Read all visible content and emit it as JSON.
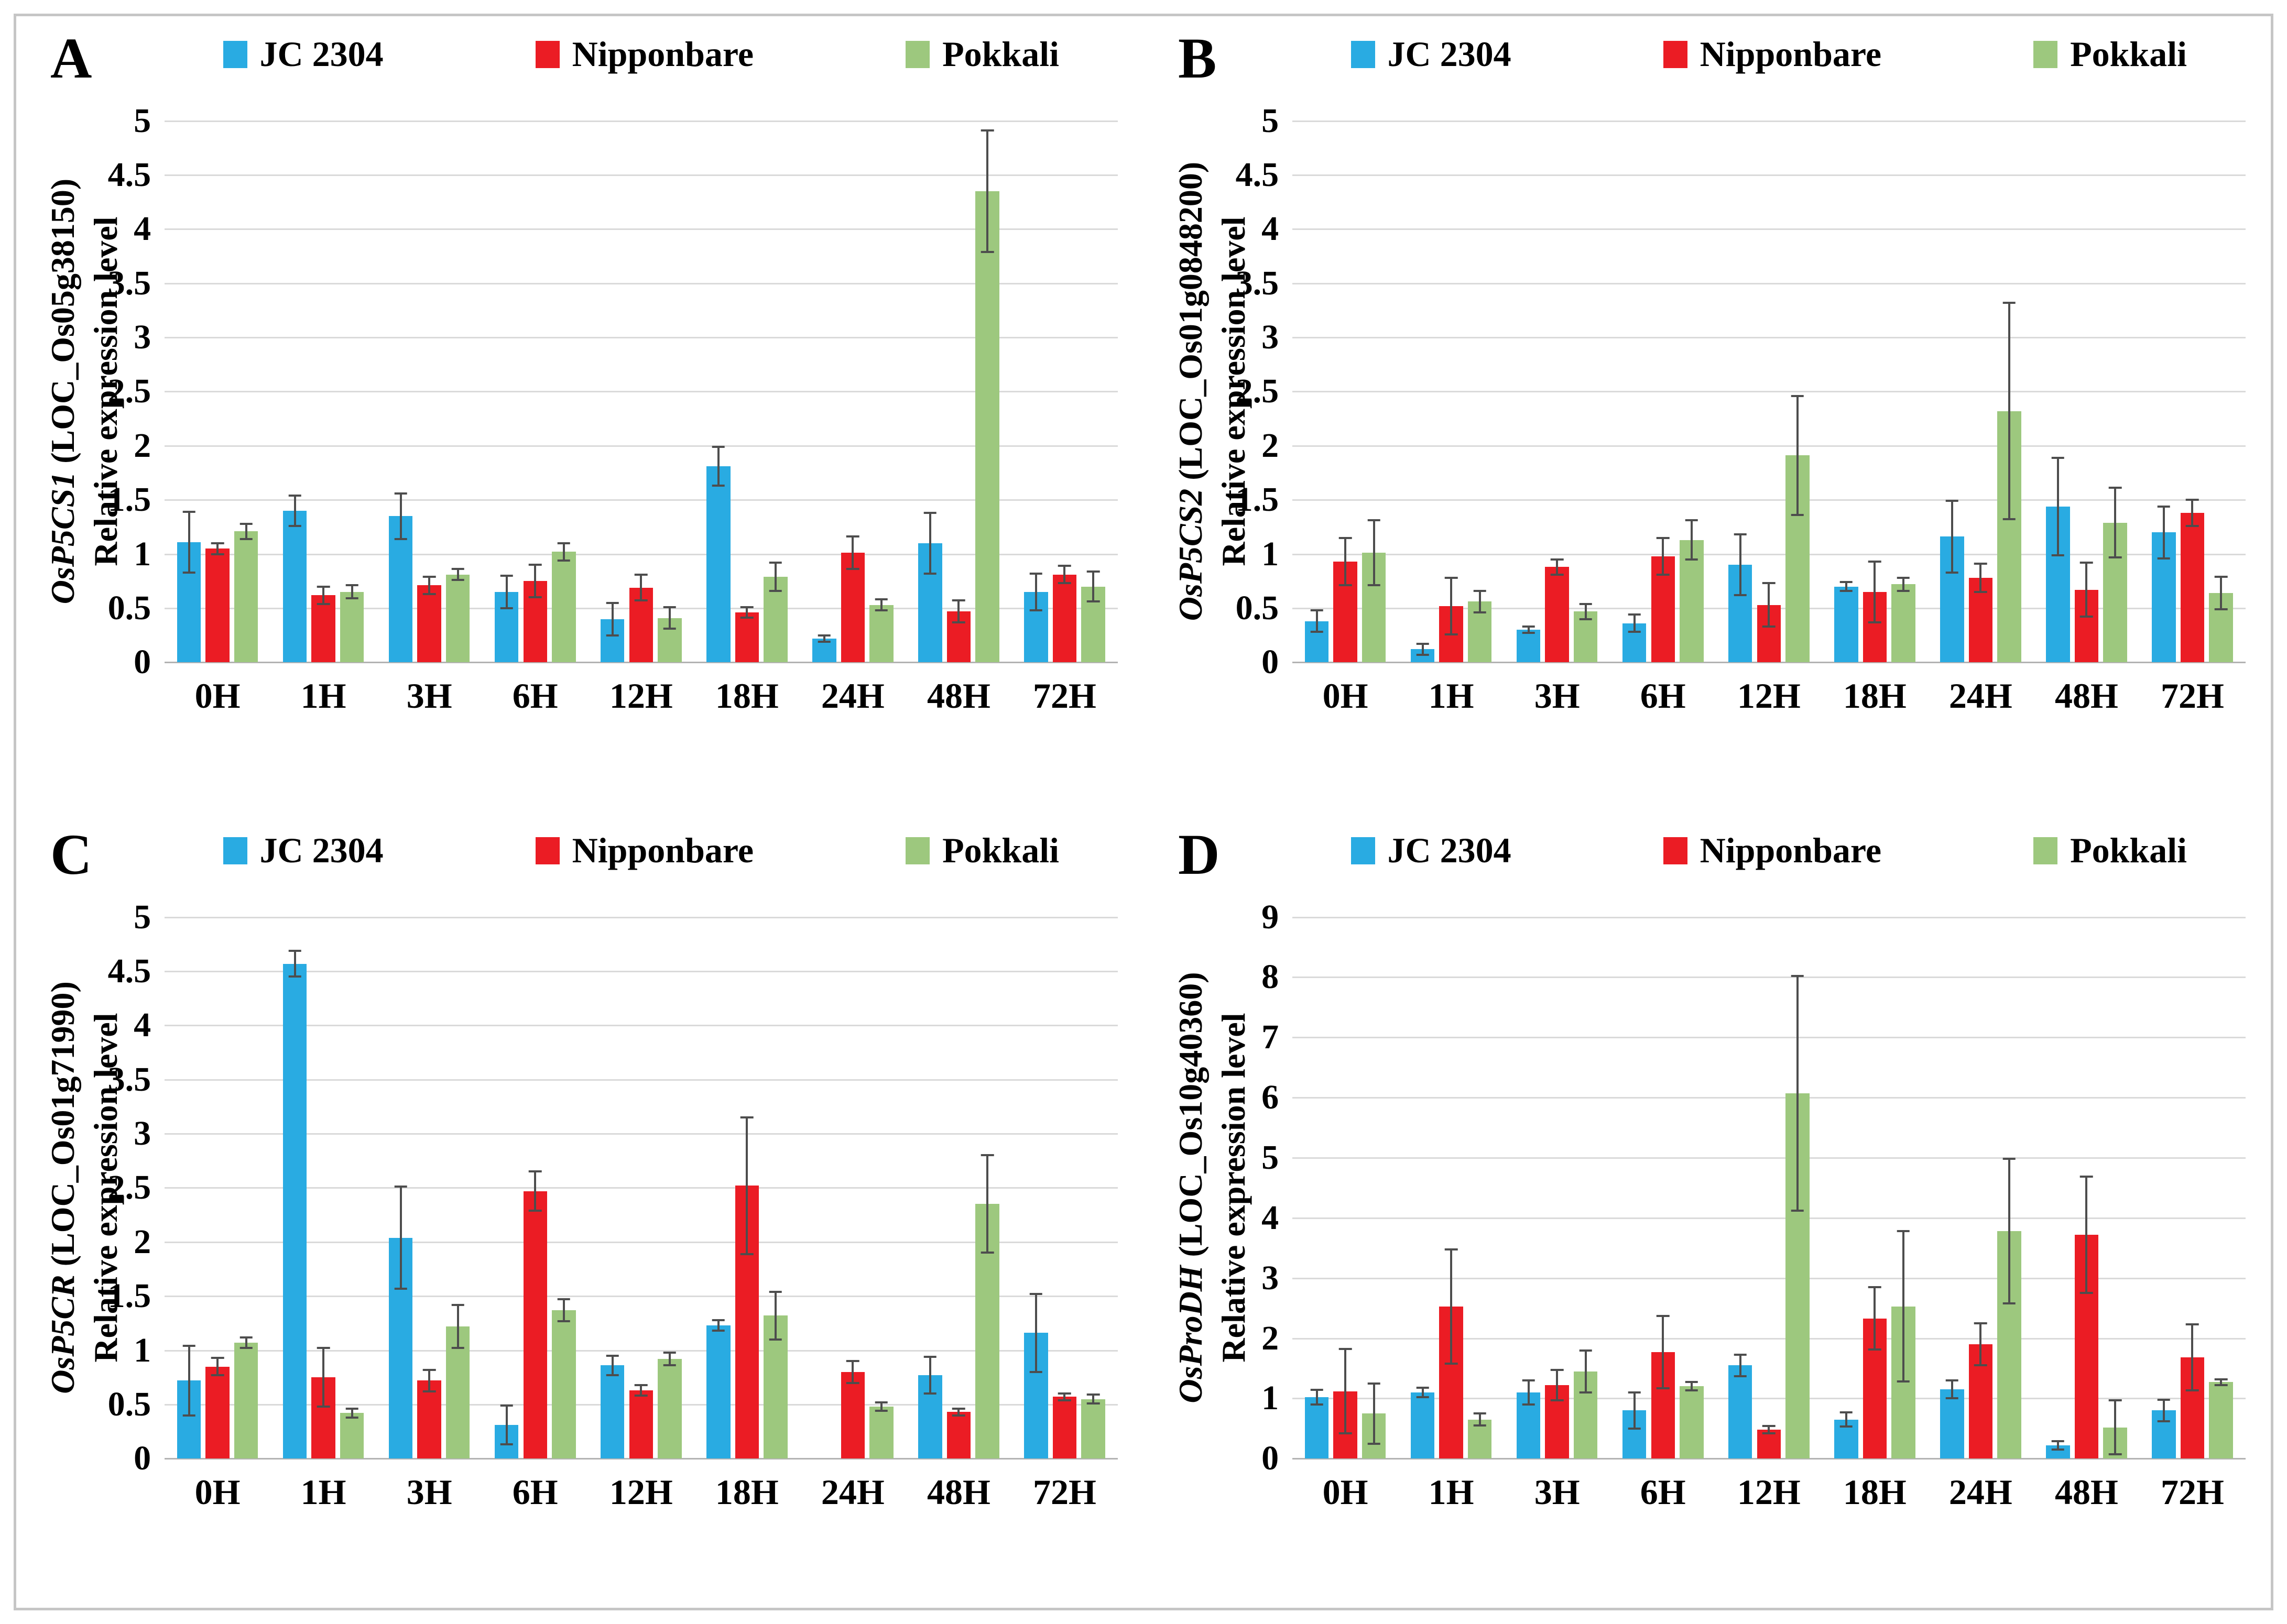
{
  "figure": {
    "background": "#ffffff",
    "border_color": "#c6c6c6",
    "gridline_color": "#dadada",
    "axis_line_color": "#b3b3b3",
    "error_bar_color": "#4d4d4d"
  },
  "legend": {
    "position": "top",
    "items": [
      {
        "label": "JC 2304",
        "color": "#29ABE2"
      },
      {
        "label": "Nipponbare",
        "color": "#EB1C24"
      },
      {
        "label": "Pokkali",
        "color": "#9DC87E"
      }
    ]
  },
  "chart_data": [
    {
      "type": "bar",
      "panel_label": "A",
      "gene": "OsP5CS1",
      "locus": "(LOC_Os05g38150)",
      "ylabel": "Relative expression level",
      "grid": true,
      "legend_position": "top",
      "categories": [
        "0H",
        "1H",
        "3H",
        "6H",
        "12H",
        "18H",
        "24H",
        "48H",
        "72H"
      ],
      "ylim": [
        0,
        5
      ],
      "yticks": [
        0,
        0.5,
        1,
        1.5,
        2,
        2.5,
        3,
        3.5,
        4,
        4.5,
        5
      ],
      "series": [
        {
          "name": "JC 2304",
          "color": "#29ABE2",
          "values": [
            1.11,
            1.4,
            1.35,
            0.65,
            0.4,
            1.81,
            0.22,
            1.1,
            0.65
          ],
          "errors": [
            0.28,
            0.14,
            0.21,
            0.15,
            0.15,
            0.18,
            0.03,
            0.28,
            0.17
          ]
        },
        {
          "name": "Nipponbare",
          "color": "#EB1C24",
          "values": [
            1.05,
            0.62,
            0.71,
            0.75,
            0.69,
            0.46,
            1.01,
            0.47,
            0.81
          ],
          "errors": [
            0.05,
            0.08,
            0.08,
            0.15,
            0.12,
            0.05,
            0.15,
            0.1,
            0.08
          ]
        },
        {
          "name": "Pokkali",
          "color": "#9DC87E",
          "values": [
            1.21,
            0.65,
            0.81,
            1.02,
            0.41,
            0.79,
            0.53,
            4.35,
            0.7
          ],
          "errors": [
            0.07,
            0.06,
            0.05,
            0.08,
            0.1,
            0.13,
            0.05,
            0.56,
            0.14
          ]
        }
      ]
    },
    {
      "type": "bar",
      "panel_label": "B",
      "gene": "OsP5CS2",
      "locus": "(LOC_Os01g0848200)",
      "ylabel": "Relative expression level",
      "grid": true,
      "legend_position": "top",
      "categories": [
        "0H",
        "1H",
        "3H",
        "6H",
        "12H",
        "18H",
        "24H",
        "48H",
        "72H"
      ],
      "ylim": [
        0,
        5
      ],
      "yticks": [
        0,
        0.5,
        1,
        1.5,
        2,
        2.5,
        3,
        3.5,
        4,
        4.5,
        5
      ],
      "series": [
        {
          "name": "JC 2304",
          "color": "#29ABE2",
          "values": [
            0.38,
            0.12,
            0.3,
            0.36,
            0.9,
            0.7,
            1.16,
            1.44,
            1.2
          ],
          "errors": [
            0.1,
            0.05,
            0.03,
            0.08,
            0.28,
            0.04,
            0.33,
            0.45,
            0.24
          ]
        },
        {
          "name": "Nipponbare",
          "color": "#EB1C24",
          "values": [
            0.93,
            0.52,
            0.88,
            0.98,
            0.53,
            0.65,
            0.78,
            0.67,
            1.38
          ],
          "errors": [
            0.22,
            0.26,
            0.07,
            0.17,
            0.2,
            0.28,
            0.13,
            0.25,
            0.12
          ]
        },
        {
          "name": "Pokkali",
          "color": "#9DC87E",
          "values": [
            1.01,
            0.56,
            0.47,
            1.13,
            1.91,
            0.72,
            2.32,
            1.29,
            0.64
          ],
          "errors": [
            0.3,
            0.1,
            0.07,
            0.18,
            0.55,
            0.06,
            1.0,
            0.32,
            0.15
          ]
        }
      ]
    },
    {
      "type": "bar",
      "panel_label": "C",
      "gene": "OsP5CR",
      "locus": "(LOC_Os01g71990)",
      "ylabel": "Relative expression level",
      "grid": true,
      "legend_position": "top",
      "categories": [
        "0H",
        "1H",
        "3H",
        "6H",
        "12H",
        "18H",
        "24H",
        "48H",
        "72H"
      ],
      "ylim": [
        0,
        5
      ],
      "yticks": [
        0,
        0.5,
        1,
        1.5,
        2,
        2.5,
        3,
        3.5,
        4,
        4.5,
        5
      ],
      "series": [
        {
          "name": "JC 2304",
          "color": "#29ABE2",
          "values": [
            0.72,
            4.57,
            2.04,
            0.31,
            0.86,
            1.23,
            0,
            0.77,
            1.16
          ],
          "errors": [
            0.32,
            0.12,
            0.47,
            0.18,
            0.09,
            0.05,
            0,
            0.17,
            0.36
          ]
        },
        {
          "name": "Nipponbare",
          "color": "#EB1C24",
          "values": [
            0.85,
            0.75,
            0.72,
            2.47,
            0.63,
            2.52,
            0.8,
            0.43,
            0.57
          ],
          "errors": [
            0.08,
            0.27,
            0.1,
            0.18,
            0.05,
            0.63,
            0.1,
            0.03,
            0.03
          ]
        },
        {
          "name": "Pokkali",
          "color": "#9DC87E",
          "values": [
            1.07,
            0.42,
            1.22,
            1.37,
            0.92,
            1.32,
            0.48,
            2.35,
            0.55
          ],
          "errors": [
            0.05,
            0.04,
            0.2,
            0.1,
            0.06,
            0.22,
            0.04,
            0.45,
            0.04
          ]
        }
      ]
    },
    {
      "type": "bar",
      "panel_label": "D",
      "gene": "OsProDH",
      "locus": "(LOC_Os10g40360)",
      "ylabel": "Relative expression level",
      "grid": true,
      "legend_position": "top",
      "categories": [
        "0H",
        "1H",
        "3H",
        "6H",
        "12H",
        "18H",
        "24H",
        "48H",
        "72H"
      ],
      "ylim": [
        0,
        9
      ],
      "yticks": [
        0,
        1,
        2,
        3,
        4,
        5,
        6,
        7,
        8,
        9
      ],
      "series": [
        {
          "name": "JC 2304",
          "color": "#29ABE2",
          "values": [
            1.02,
            1.1,
            1.1,
            0.8,
            1.55,
            0.65,
            1.15,
            0.22,
            0.8
          ],
          "errors": [
            0.12,
            0.08,
            0.2,
            0.3,
            0.18,
            0.12,
            0.15,
            0.07,
            0.18
          ]
        },
        {
          "name": "Nipponbare",
          "color": "#EB1C24",
          "values": [
            1.12,
            2.53,
            1.22,
            1.77,
            0.48,
            2.33,
            1.9,
            3.72,
            1.68
          ],
          "errors": [
            0.7,
            0.95,
            0.25,
            0.6,
            0.06,
            0.52,
            0.35,
            0.97,
            0.55
          ]
        },
        {
          "name": "Pokkali",
          "color": "#9DC87E",
          "values": [
            0.75,
            0.65,
            1.45,
            1.2,
            6.07,
            2.53,
            3.78,
            0.52,
            1.27
          ],
          "errors": [
            0.5,
            0.1,
            0.35,
            0.07,
            1.95,
            1.25,
            1.2,
            0.45,
            0.05
          ]
        }
      ]
    }
  ]
}
